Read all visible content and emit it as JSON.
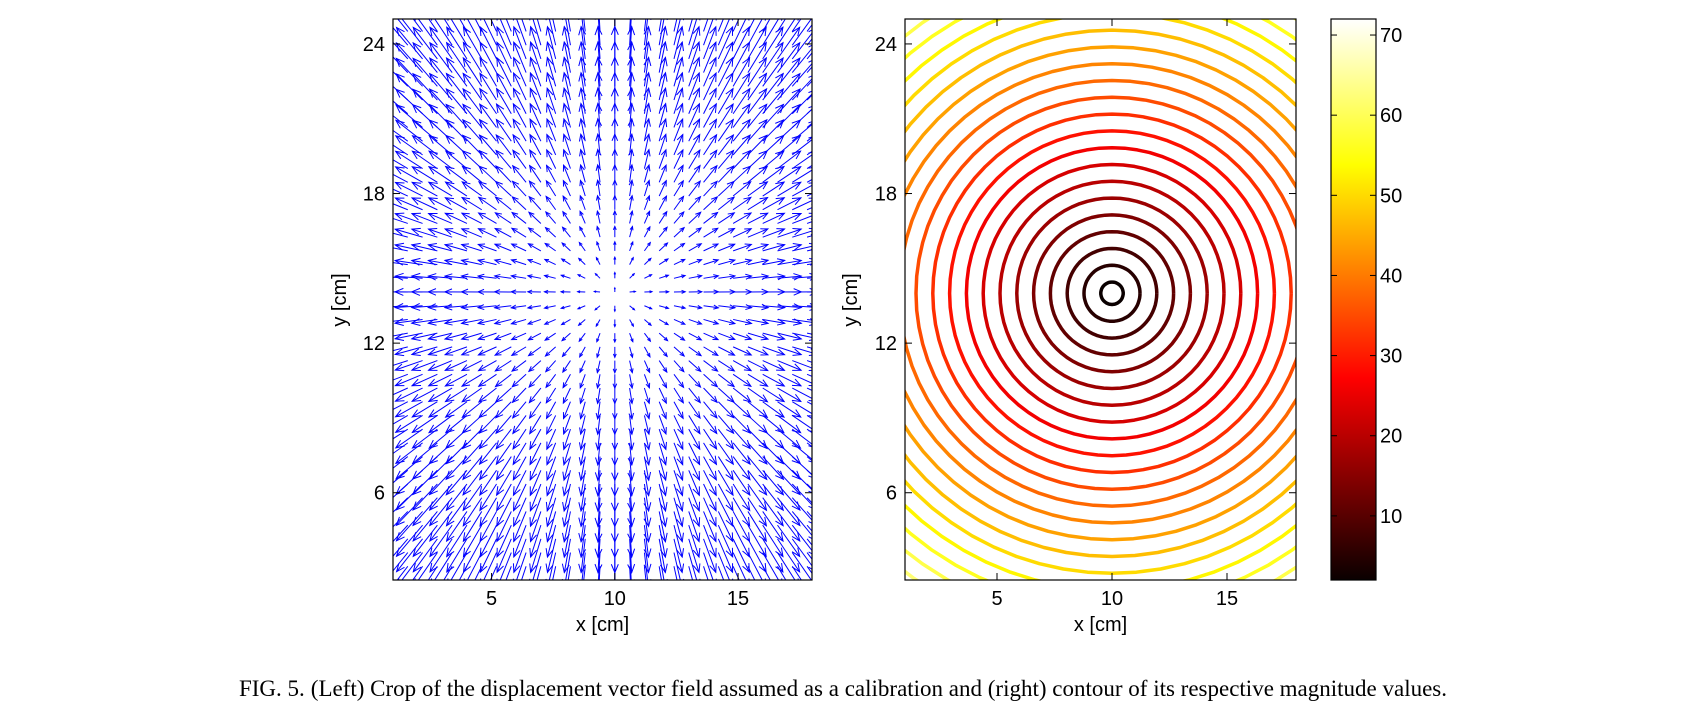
{
  "caption": {
    "number": "FIG. 5.",
    "text": "(Left) Crop of the displacement vector field assumed as a calibration and (right) contour of its respective magnitude values."
  },
  "chart_data": [
    {
      "type": "quiver",
      "xlabel": "x [cm]",
      "ylabel": "y [cm]",
      "xlim": [
        1,
        18
      ],
      "ylim": [
        2.5,
        25
      ],
      "xticks": [
        5,
        10,
        15
      ],
      "yticks": [
        6,
        12,
        18,
        24
      ],
      "grid": false,
      "arrow_color": "#0000ff",
      "field": {
        "kind": "radial-outward",
        "center": [
          10,
          14
        ],
        "grid_x": [
          1,
          18,
          0.6
        ],
        "grid_y": [
          2.5,
          25,
          0.55
        ],
        "magnitude_range": [
          0,
          70
        ]
      }
    },
    {
      "type": "contour",
      "xlabel": "x [cm]",
      "ylabel": "y [cm]",
      "xlim": [
        1,
        18
      ],
      "ylim": [
        2.5,
        25
      ],
      "xticks": [
        5,
        10,
        15
      ],
      "yticks": [
        6,
        12,
        18,
        24
      ],
      "grid": false,
      "center": [
        10,
        14
      ],
      "levels": [
        2,
        5,
        8,
        11,
        14,
        17,
        20,
        23,
        26,
        29,
        32,
        35,
        38,
        41,
        44,
        47,
        50,
        53,
        56,
        59,
        62,
        65
      ],
      "colormap": "hot",
      "colorbar": {
        "ticks": [
          10,
          20,
          30,
          40,
          50,
          60,
          70
        ],
        "range": [
          2,
          72
        ]
      }
    }
  ]
}
